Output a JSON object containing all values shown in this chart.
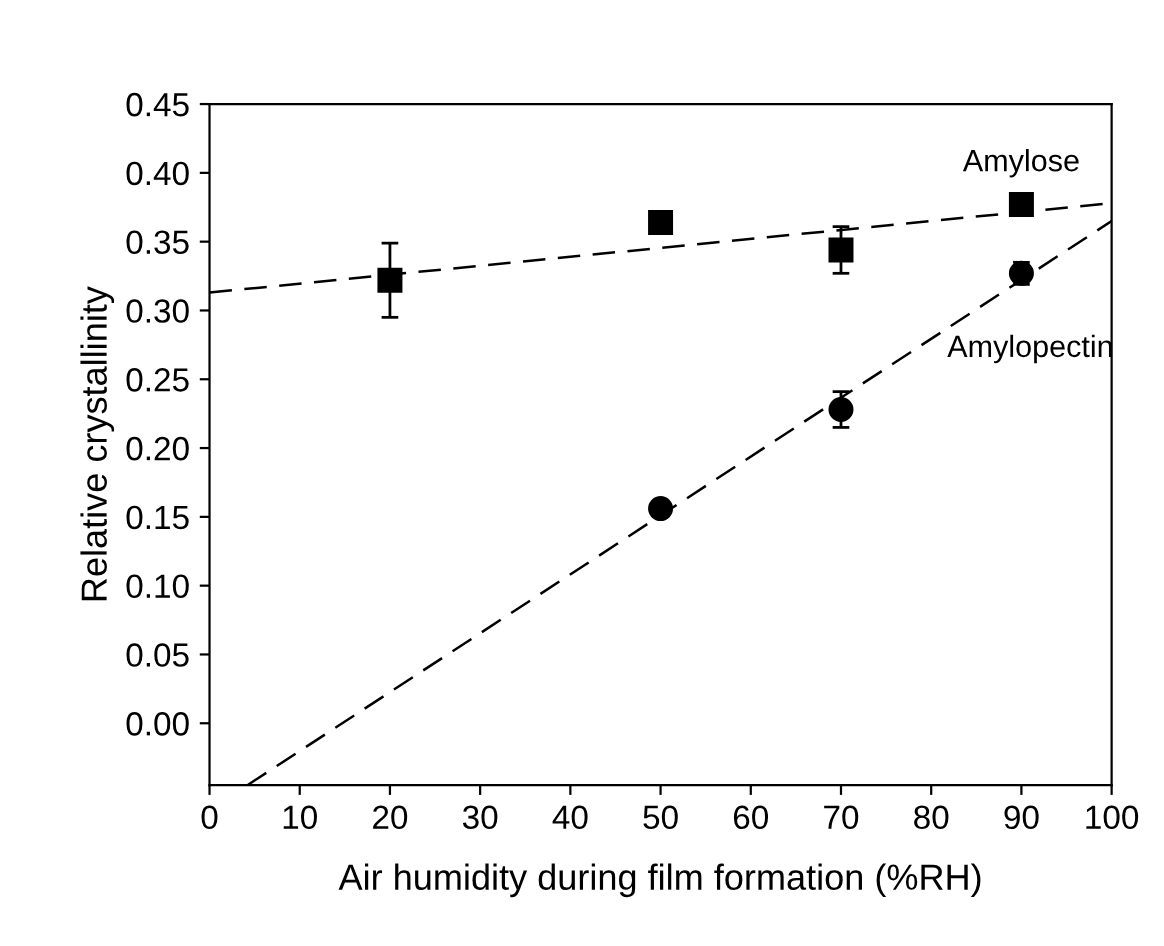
{
  "chart_data": {
    "type": "scatter",
    "xlabel": "Air humidity during film formation (%RH)",
    "ylabel": "Relative crystallinity",
    "xlim": [
      0,
      100
    ],
    "ylim": [
      -0.045,
      0.45
    ],
    "xticks": [
      0,
      10,
      20,
      30,
      40,
      50,
      60,
      70,
      80,
      90,
      100
    ],
    "yticks": [
      {
        "value": 0,
        "label": "0.00"
      },
      {
        "value": 0.05,
        "label": "0.05"
      },
      {
        "value": 0.1,
        "label": "0.10"
      },
      {
        "value": 0.15,
        "label": "0.15"
      },
      {
        "value": 0.2,
        "label": "0.20"
      },
      {
        "value": 0.25,
        "label": "0.25"
      },
      {
        "value": 0.3,
        "label": "0.30"
      },
      {
        "value": 0.35,
        "label": "0.35"
      },
      {
        "value": 0.4,
        "label": "0.40"
      },
      {
        "value": 0.45,
        "label": "0.45"
      }
    ],
    "grid": false,
    "legend": false,
    "series": [
      {
        "name": "Amylose",
        "marker": "square",
        "color": "#000000",
        "x": [
          20,
          50,
          70,
          90
        ],
        "values": [
          0.322,
          0.364,
          0.344,
          0.377
        ],
        "errors": [
          0.027,
          0.005,
          0.017,
          0.004
        ]
      },
      {
        "name": "Amylopectin",
        "marker": "circle",
        "color": "#000000",
        "x": [
          50,
          70,
          90
        ],
        "values": [
          0.156,
          0.228,
          0.327
        ],
        "errors": [
          0.005,
          0.013,
          0.008
        ]
      },
      {
        "type": "line",
        "line_style": "dashed",
        "marker": "none",
        "color": "#000000",
        "x": [
          0,
          100
        ],
        "values": [
          0.313,
          0.378
        ]
      },
      {
        "type": "line",
        "line_style": "dashed",
        "marker": "none",
        "color": "#000000",
        "x": [
          4.2,
          100
        ],
        "values": [
          -0.045,
          0.365
        ]
      }
    ]
  }
}
